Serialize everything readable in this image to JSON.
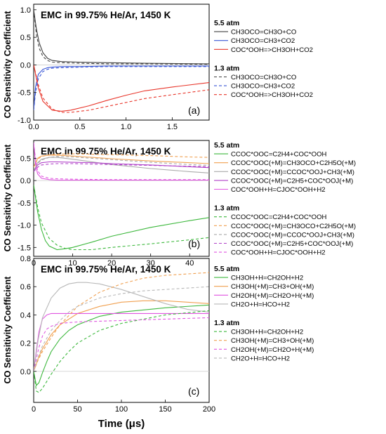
{
  "figure": {
    "y_label": "CO Sensitivity Coefficient",
    "x_label": "Time (μs)"
  },
  "chart_data": [
    {
      "type": "line",
      "panel_label": "(a)",
      "title": "EMC in 99.75% He/Ar, 1450 K",
      "xlim": [
        0,
        1.9
      ],
      "ylim": [
        -1.0,
        1.1
      ],
      "x_ticks": [
        0.0,
        0.5,
        1.0,
        1.5
      ],
      "x_tick_labels": [
        "0.0",
        "0.5",
        "1.0",
        "1.5"
      ],
      "y_ticks": [
        1.0,
        0.5,
        0.0,
        -0.5,
        -1.0
      ],
      "y_tick_labels": [
        "1.0",
        "0.5",
        "0.0",
        "-0.5",
        "-1.0"
      ],
      "legend_groups": [
        {
          "title": "5.5 atm",
          "style": "solid",
          "series": [
            {
              "name": "CH3OCO=CH3O+CO",
              "color": "#404040",
              "x": [
                0,
                0.03,
                0.06,
                0.1,
                0.15,
                0.2,
                0.3,
                0.5,
                0.8,
                1.2,
                1.9
              ],
              "y": [
                1.0,
                0.65,
                0.4,
                0.22,
                0.12,
                0.08,
                0.06,
                0.05,
                0.04,
                0.03,
                0.02
              ]
            },
            {
              "name": "CH3OCO=CH3+CO2",
              "color": "#3a57d6",
              "x": [
                0,
                0.02,
                0.05,
                0.1,
                0.15,
                0.2,
                0.3,
                0.5,
                0.8,
                1.2,
                1.9
              ],
              "y": [
                -0.82,
                -0.4,
                -0.17,
                -0.08,
                -0.05,
                -0.04,
                -0.03,
                -0.03,
                -0.02,
                -0.02,
                -0.02
              ]
            },
            {
              "name": "COC*OOH=>CH3OH+CO2",
              "color": "#e8352a",
              "x": [
                0,
                0.05,
                0.1,
                0.2,
                0.3,
                0.4,
                0.6,
                0.8,
                1.0,
                1.2,
                1.5,
                1.9
              ],
              "y": [
                0.0,
                -0.42,
                -0.66,
                -0.82,
                -0.84,
                -0.82,
                -0.74,
                -0.64,
                -0.55,
                -0.47,
                -0.4,
                -0.32
              ]
            }
          ]
        },
        {
          "title": "1.3 atm",
          "style": "dashed",
          "series": [
            {
              "name": "CH3OCO=CH3O+CO",
              "color": "#404040",
              "x": [
                0,
                0.03,
                0.06,
                0.1,
                0.15,
                0.2,
                0.3,
                0.5,
                0.8,
                1.2,
                1.9
              ],
              "y": [
                1.0,
                0.55,
                0.3,
                0.15,
                0.08,
                0.05,
                0.04,
                0.03,
                0.02,
                0.02,
                0.01
              ]
            },
            {
              "name": "CH3OCO=CH3+CO2",
              "color": "#3a57d6",
              "x": [
                0,
                0.02,
                0.05,
                0.1,
                0.15,
                0.2,
                0.3,
                0.5,
                0.8,
                1.2,
                1.9
              ],
              "y": [
                -0.82,
                -0.5,
                -0.25,
                -0.12,
                -0.08,
                -0.06,
                -0.05,
                -0.04,
                -0.03,
                -0.03,
                -0.03
              ]
            },
            {
              "name": "COC*OOH=>CH3OH+CO2",
              "color": "#e8352a",
              "x": [
                0,
                0.05,
                0.1,
                0.2,
                0.3,
                0.4,
                0.6,
                0.8,
                1.0,
                1.2,
                1.5,
                1.9
              ],
              "y": [
                0.0,
                -0.36,
                -0.6,
                -0.8,
                -0.86,
                -0.86,
                -0.82,
                -0.75,
                -0.68,
                -0.61,
                -0.54,
                -0.45
              ]
            }
          ]
        }
      ]
    },
    {
      "type": "line",
      "panel_label": "(b)",
      "title": "EMC in 99.75% He/Ar, 1450 K",
      "xlim": [
        0,
        45
      ],
      "ylim": [
        -1.7,
        0.9
      ],
      "x_ticks": [
        0,
        10,
        20,
        30,
        40
      ],
      "x_tick_labels": [
        "0",
        "10",
        "20",
        "30",
        "40"
      ],
      "y_ticks": [
        0.5,
        0.0,
        -0.5,
        -1.0,
        -1.5
      ],
      "y_tick_labels": [
        "0.5",
        "0.0",
        "-0.5",
        "-1.0",
        "-1.5"
      ],
      "legend_groups": [
        {
          "title": "5.5 atm",
          "style": "solid",
          "series": [
            {
              "name": "CCOC*OOC=C2H4+COC*OOH",
              "color": "#3db83d",
              "x": [
                0,
                1,
                2,
                3,
                4,
                6,
                8,
                10,
                15,
                20,
                30,
                40,
                45
              ],
              "y": [
                -0.1,
                -0.7,
                -1.1,
                -1.35,
                -1.47,
                -1.55,
                -1.53,
                -1.5,
                -1.38,
                -1.25,
                -1.05,
                -0.9,
                -0.83
              ]
            },
            {
              "name": "CCOC*OOC(+M)=CH3OCO+C2H5O(+M)",
              "color": "#f0a050",
              "x": [
                0,
                1,
                2,
                4,
                6,
                10,
                15,
                20,
                30,
                40,
                45
              ],
              "y": [
                0.3,
                0.5,
                0.55,
                0.57,
                0.57,
                0.55,
                0.52,
                0.49,
                0.44,
                0.4,
                0.38
              ]
            },
            {
              "name": "CCOC*OOC(+M)=CCOC*OOJ+CH3(+M)",
              "color": "#aaaaaa",
              "x": [
                0,
                1,
                2,
                4,
                6,
                10,
                15,
                20,
                30,
                40,
                45
              ],
              "y": [
                0.2,
                0.4,
                0.48,
                0.52,
                0.52,
                0.48,
                0.42,
                0.36,
                0.27,
                0.2,
                0.17
              ]
            },
            {
              "name": "CCOC*OOC(+M)=C2H5+COC*OOJ(+M)",
              "color": "#b040c8",
              "x": [
                0,
                1,
                2,
                4,
                6,
                10,
                15,
                20,
                30,
                40,
                45
              ],
              "y": [
                0.2,
                0.35,
                0.4,
                0.42,
                0.42,
                0.41,
                0.4,
                0.38,
                0.35,
                0.31,
                0.29
              ]
            },
            {
              "name": "COC*OOH+H=CJOC*OOH+H2",
              "color": "#e055e0",
              "x": [
                0,
                0.5,
                1,
                2,
                4,
                6,
                10,
                20,
                30,
                45
              ],
              "y": [
                0.85,
                0.35,
                0.15,
                0.05,
                0.02,
                0.01,
                0.01,
                0.01,
                0.01,
                0.01
              ]
            }
          ]
        },
        {
          "title": "1.3 atm",
          "style": "dashed",
          "series": [
            {
              "name": "CCOC*OOC=C2H4+COC*OOH",
              "color": "#3db83d",
              "x": [
                0,
                1,
                2,
                4,
                6,
                8,
                10,
                15,
                20,
                30,
                40,
                45
              ],
              "y": [
                -0.1,
                -0.6,
                -0.95,
                -1.3,
                -1.45,
                -1.52,
                -1.55,
                -1.55,
                -1.5,
                -1.42,
                -1.33,
                -1.28
              ]
            },
            {
              "name": "CCOC*OOC(+M)=CH3OCO+C2H5O(+M)",
              "color": "#f0a050",
              "x": [
                0,
                1,
                2,
                4,
                6,
                10,
                15,
                20,
                30,
                40,
                45
              ],
              "y": [
                0.3,
                0.48,
                0.54,
                0.58,
                0.59,
                0.6,
                0.59,
                0.58,
                0.56,
                0.53,
                0.52
              ]
            },
            {
              "name": "CCOC*OOC(+M)=CCOC*OOJ+CH3(+M)",
              "color": "#aaaaaa",
              "x": [
                0,
                1,
                2,
                4,
                6,
                10,
                15,
                20,
                30,
                40,
                45
              ],
              "y": [
                0.2,
                0.38,
                0.46,
                0.52,
                0.54,
                0.53,
                0.5,
                0.47,
                0.41,
                0.36,
                0.34
              ]
            },
            {
              "name": "CCOC*OOC(+M)=C2H5+COC*OOJ(+M)",
              "color": "#b040c8",
              "x": [
                0,
                1,
                2,
                4,
                6,
                10,
                15,
                20,
                30,
                40,
                45
              ],
              "y": [
                0.2,
                0.3,
                0.35,
                0.37,
                0.38,
                0.38,
                0.37,
                0.36,
                0.34,
                0.32,
                0.31
              ]
            },
            {
              "name": "COC*OOH+H=CJOC*OOH+H2",
              "color": "#e055e0",
              "x": [
                0,
                0.5,
                1,
                2,
                4,
                6,
                10,
                20,
                30,
                45
              ],
              "y": [
                0.85,
                0.45,
                0.22,
                0.1,
                0.05,
                0.04,
                0.03,
                0.02,
                0.02,
                0.02
              ]
            }
          ]
        }
      ]
    },
    {
      "type": "line",
      "panel_label": "(c)",
      "title": "EMC in 99.75% He/Ar, 1450 K",
      "xlim": [
        0,
        200
      ],
      "ylim": [
        -0.22,
        0.8
      ],
      "x_ticks": [
        0,
        50,
        100,
        150,
        200
      ],
      "x_tick_labels": [
        "0",
        "50",
        "100",
        "150",
        "200"
      ],
      "y_ticks": [
        0.8,
        0.6,
        0.4,
        0.2,
        0.0
      ],
      "y_tick_labels": [
        "0.8",
        "0.6",
        "0.4",
        "0.2",
        "0.0"
      ],
      "legend_groups": [
        {
          "title": "5.5 atm",
          "style": "solid",
          "series": [
            {
              "name": "CH3OH+H=CH2OH+H2",
              "color": "#3db83d",
              "x": [
                0,
                3,
                6,
                10,
                15,
                20,
                30,
                40,
                50,
                75,
                100,
                150,
                200
              ],
              "y": [
                0.0,
                -0.1,
                -0.08,
                -0.01,
                0.07,
                0.14,
                0.23,
                0.29,
                0.33,
                0.39,
                0.42,
                0.45,
                0.47
              ]
            },
            {
              "name": "CH3OH(+M)=CH3+OH(+M)",
              "color": "#f0a050",
              "x": [
                0,
                5,
                10,
                20,
                30,
                50,
                75,
                100,
                125,
                150,
                175,
                200
              ],
              "y": [
                0.0,
                0.09,
                0.16,
                0.26,
                0.33,
                0.41,
                0.46,
                0.49,
                0.5,
                0.5,
                0.49,
                0.48
              ]
            },
            {
              "name": "CH2OH(+M)=CH2O+H(+M)",
              "color": "#e055e0",
              "x": [
                0,
                3,
                6,
                10,
                15,
                20,
                30,
                50,
                100,
                150,
                200
              ],
              "y": [
                0.0,
                0.15,
                0.28,
                0.37,
                0.4,
                0.41,
                0.41,
                0.41,
                0.41,
                0.41,
                0.41
              ]
            },
            {
              "name": "CH2O+H=HCO+H2",
              "color": "#b8b8b8",
              "x": [
                0,
                5,
                10,
                20,
                30,
                40,
                50,
                60,
                75,
                100,
                125,
                150,
                175,
                200
              ],
              "y": [
                0.0,
                0.22,
                0.38,
                0.52,
                0.59,
                0.62,
                0.63,
                0.63,
                0.62,
                0.58,
                0.53,
                0.48,
                0.44,
                0.42
              ]
            }
          ]
        },
        {
          "title": "1.3 atm",
          "style": "dashed",
          "series": [
            {
              "name": "CH3OH+H=CH2OH+H2",
              "color": "#3db83d",
              "x": [
                0,
                3,
                6,
                10,
                15,
                20,
                30,
                40,
                50,
                75,
                100,
                150,
                200
              ],
              "y": [
                0.0,
                -0.14,
                -0.15,
                -0.12,
                -0.07,
                -0.02,
                0.07,
                0.14,
                0.2,
                0.29,
                0.34,
                0.4,
                0.43
              ]
            },
            {
              "name": "CH3OH(+M)=CH3+OH(+M)",
              "color": "#f0a050",
              "x": [
                0,
                5,
                10,
                20,
                30,
                50,
                75,
                100,
                125,
                150,
                175,
                200
              ],
              "y": [
                0.0,
                0.08,
                0.14,
                0.24,
                0.33,
                0.46,
                0.56,
                0.62,
                0.66,
                0.68,
                0.69,
                0.7
              ]
            },
            {
              "name": "CH2OH(+M)=CH2O+H(+M)",
              "color": "#e055e0",
              "x": [
                0,
                3,
                6,
                10,
                15,
                20,
                30,
                50,
                100,
                150,
                200
              ],
              "y": [
                0.0,
                0.09,
                0.17,
                0.25,
                0.3,
                0.32,
                0.34,
                0.35,
                0.36,
                0.37,
                0.38
              ]
            },
            {
              "name": "CH2O+H=HCO+H2",
              "color": "#b8b8b8",
              "x": [
                0,
                5,
                10,
                20,
                30,
                40,
                50,
                75,
                100,
                125,
                150,
                175,
                200
              ],
              "y": [
                0.0,
                0.1,
                0.18,
                0.29,
                0.36,
                0.42,
                0.46,
                0.52,
                0.55,
                0.57,
                0.58,
                0.59,
                0.6
              ]
            }
          ]
        }
      ]
    }
  ]
}
